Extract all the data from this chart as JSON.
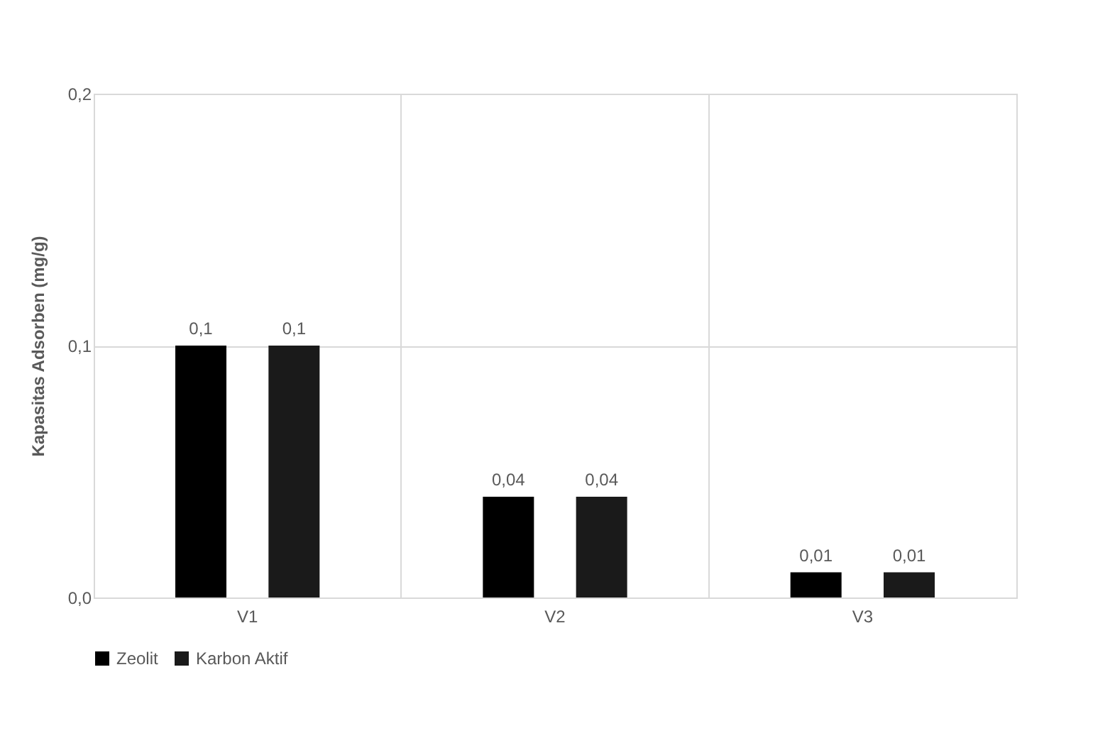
{
  "chart_data": {
    "type": "bar",
    "ylabel": "Kapasitas Adsorben (mg/g)",
    "categories": [
      "V1",
      "V2",
      "V3"
    ],
    "series": [
      {
        "name": "Zeolit",
        "color": "#000000",
        "values": [
          0.1,
          0.04,
          0.01
        ],
        "value_labels": [
          "0,1",
          "0,04",
          "0,01"
        ]
      },
      {
        "name": "Karbon Aktif",
        "color": "#1a1a1a",
        "values": [
          0.1,
          0.04,
          0.01
        ],
        "value_labels": [
          "0,1",
          "0,04",
          "0,01"
        ]
      }
    ],
    "ylim": [
      0,
      0.2
    ],
    "yticks": [
      {
        "value": 0,
        "label": "0,0"
      },
      {
        "value": 0.1,
        "label": "0,1"
      },
      {
        "value": 0.2,
        "label": "0,2"
      }
    ],
    "grid": true,
    "legend": "bottom"
  }
}
